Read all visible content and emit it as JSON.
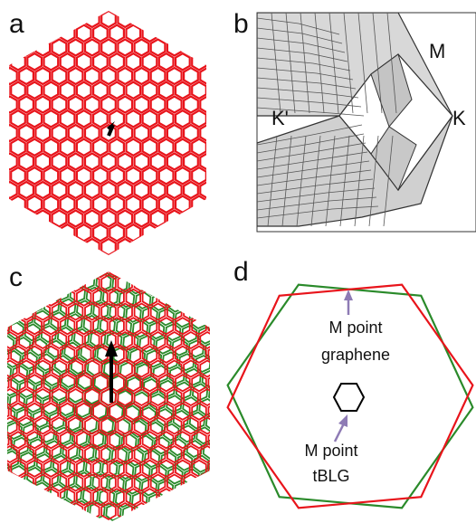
{
  "panels": [
    {
      "id": "a",
      "letter": "a"
    },
    {
      "id": "b",
      "letter": "b",
      "points": {
        "m": "M",
        "k": "K",
        "kprime": "K'"
      }
    },
    {
      "id": "c",
      "letter": "c"
    },
    {
      "id": "d",
      "letter": "d",
      "annotation_top": {
        "line1": "M point",
        "line2": "graphene"
      },
      "annotation_bottom": {
        "line1": "M point",
        "line2": "tBLG"
      }
    }
  ],
  "colors": {
    "lattice_layer_1": "#e8141b",
    "lattice_layer_2": "#2a8a2a",
    "arrow": "#000000",
    "annotation_arrow": "#8e7bb5",
    "surface_fill": "#d8d8d8",
    "surface_line": "#333333"
  },
  "icons": {
    "arrow": "arrow-up-icon"
  }
}
